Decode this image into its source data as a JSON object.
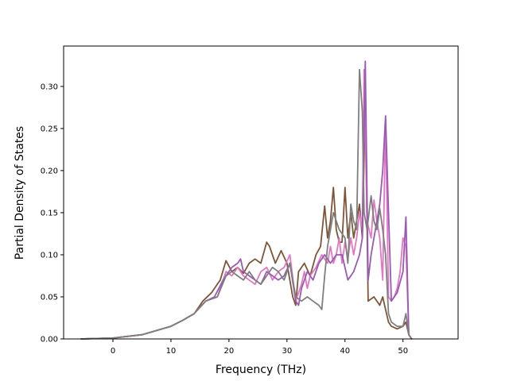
{
  "chart_data": {
    "type": "line",
    "xlabel": "Frequency (THz)",
    "ylabel": "Partial Density of States",
    "xlim": [
      -8.5,
      59.5
    ],
    "ylim": [
      0.0,
      0.348
    ],
    "xticks": [
      0,
      10,
      20,
      30,
      40,
      50
    ],
    "yticks": [
      0.0,
      0.05,
      0.1,
      0.15,
      0.2,
      0.25,
      0.3
    ],
    "ytick_labels": [
      "0.00",
      "0.05",
      "0.10",
      "0.15",
      "0.20",
      "0.25",
      "0.30"
    ],
    "grid": false,
    "colors": {
      "brown": "#7f5539",
      "pink": "#e377c2",
      "gray": "#7f7f7f",
      "purple": "#9b59b6"
    },
    "series": [
      {
        "color": "#7f5539",
        "x": [
          -5.5,
          0,
          5,
          10,
          12,
          14,
          15.5,
          17,
          18.5,
          19.5,
          20.5,
          21.5,
          22.5,
          23.5,
          24.5,
          25.5,
          26.5,
          27,
          28,
          29,
          30,
          31,
          31.5,
          32,
          33,
          34,
          35,
          35.8,
          36.5,
          37,
          37.5,
          38,
          38.5,
          39,
          39.5,
          40,
          40.5,
          41,
          41.5,
          42,
          42.5,
          43,
          43.5,
          44,
          45,
          46,
          46.5,
          47,
          47.5,
          48,
          49,
          50,
          50.5,
          51,
          51.5
        ],
        "y": [
          0,
          0.001,
          0.005,
          0.015,
          0.022,
          0.03,
          0.045,
          0.055,
          0.07,
          0.093,
          0.08,
          0.085,
          0.078,
          0.09,
          0.095,
          0.09,
          0.115,
          0.11,
          0.09,
          0.105,
          0.09,
          0.05,
          0.04,
          0.08,
          0.09,
          0.075,
          0.1,
          0.11,
          0.158,
          0.12,
          0.14,
          0.18,
          0.13,
          0.115,
          0.115,
          0.18,
          0.12,
          0.15,
          0.12,
          0.14,
          0.16,
          0.12,
          0.28,
          0.045,
          0.05,
          0.04,
          0.05,
          0.035,
          0.02,
          0.015,
          0.012,
          0.015,
          0.02,
          0.005,
          0
        ]
      },
      {
        "color": "#e377c2",
        "x": [
          -5.5,
          0,
          5,
          10,
          12,
          14,
          16,
          18,
          19.5,
          20.5,
          21.5,
          22.5,
          23.5,
          24.5,
          25.5,
          26.5,
          27.5,
          28.5,
          29.5,
          30.5,
          31.5,
          32.5,
          33,
          33.5,
          34,
          35,
          36,
          37,
          37.5,
          38,
          38.5,
          39,
          39.5,
          40,
          40.5,
          41,
          41.5,
          42,
          42.5,
          43,
          43.3,
          43.8,
          44.5,
          45,
          45.5,
          46,
          46.5,
          47,
          47.5,
          48,
          48.5,
          49,
          49.5,
          50,
          50.5,
          51,
          51.5
        ],
        "y": [
          0,
          0.001,
          0.005,
          0.015,
          0.022,
          0.03,
          0.045,
          0.05,
          0.08,
          0.075,
          0.085,
          0.075,
          0.07,
          0.065,
          0.08,
          0.085,
          0.07,
          0.08,
          0.085,
          0.1,
          0.045,
          0.065,
          0.08,
          0.06,
          0.075,
          0.085,
          0.1,
          0.09,
          0.11,
          0.09,
          0.1,
          0.12,
          0.09,
          0.115,
          0.095,
          0.12,
          0.1,
          0.12,
          0.15,
          0.13,
          0.32,
          0.14,
          0.12,
          0.165,
          0.14,
          0.12,
          0.07,
          0.26,
          0.05,
          0.045,
          0.05,
          0.06,
          0.08,
          0.12,
          0.11,
          0.005,
          0
        ]
      },
      {
        "color": "#9b59b6",
        "x": [
          -5.5,
          0,
          5,
          10,
          12,
          14,
          16,
          17.5,
          19,
          20.5,
          21.5,
          22,
          22.5,
          23.5,
          24.5,
          25.5,
          26.5,
          27.5,
          28.5,
          29.5,
          30.5,
          31.5,
          32,
          32.5,
          33.5,
          34.5,
          35.5,
          36.5,
          37.5,
          38.5,
          39.5,
          40.5,
          41.5,
          42.5,
          43,
          43.5,
          44,
          44.5,
          45,
          45.5,
          46,
          46.5,
          47,
          47.5,
          48,
          49,
          50,
          50.5,
          51,
          51.5
        ],
        "y": [
          0,
          0.001,
          0.005,
          0.015,
          0.022,
          0.03,
          0.045,
          0.05,
          0.07,
          0.085,
          0.09,
          0.095,
          0.08,
          0.075,
          0.07,
          0.065,
          0.08,
          0.075,
          0.07,
          0.075,
          0.09,
          0.045,
          0.04,
          0.06,
          0.08,
          0.07,
          0.09,
          0.1,
          0.09,
          0.1,
          0.1,
          0.07,
          0.08,
          0.1,
          0.12,
          0.33,
          0.07,
          0.1,
          0.12,
          0.14,
          0.16,
          0.2,
          0.265,
          0.15,
          0.045,
          0.055,
          0.08,
          0.145,
          0.005,
          0
        ]
      },
      {
        "color": "#7f7f7f",
        "x": [
          -5.5,
          0,
          5,
          10,
          12,
          14,
          16,
          18,
          19.5,
          20.5,
          21.5,
          22.5,
          23.5,
          24.5,
          25.5,
          26.5,
          27.5,
          28.5,
          29.5,
          30.5,
          31.5,
          32.5,
          33.5,
          34.5,
          35.5,
          36,
          36.5,
          37,
          38,
          39,
          40,
          40.5,
          41,
          41.5,
          42,
          42.5,
          43,
          43.3,
          43.8,
          44.5,
          45,
          45.5,
          46,
          46.5,
          47,
          47.5,
          48,
          49,
          50,
          50.5,
          51,
          51.5
        ],
        "y": [
          0,
          0.001,
          0.005,
          0.015,
          0.022,
          0.03,
          0.045,
          0.05,
          0.075,
          0.08,
          0.075,
          0.07,
          0.08,
          0.07,
          0.065,
          0.075,
          0.085,
          0.08,
          0.07,
          0.09,
          0.05,
          0.045,
          0.05,
          0.045,
          0.04,
          0.035,
          0.075,
          0.11,
          0.15,
          0.13,
          0.12,
          0.09,
          0.16,
          0.14,
          0.13,
          0.32,
          0.27,
          0.15,
          0.13,
          0.17,
          0.14,
          0.13,
          0.155,
          0.13,
          0.1,
          0.03,
          0.02,
          0.015,
          0.015,
          0.03,
          0.005,
          0
        ]
      }
    ]
  }
}
